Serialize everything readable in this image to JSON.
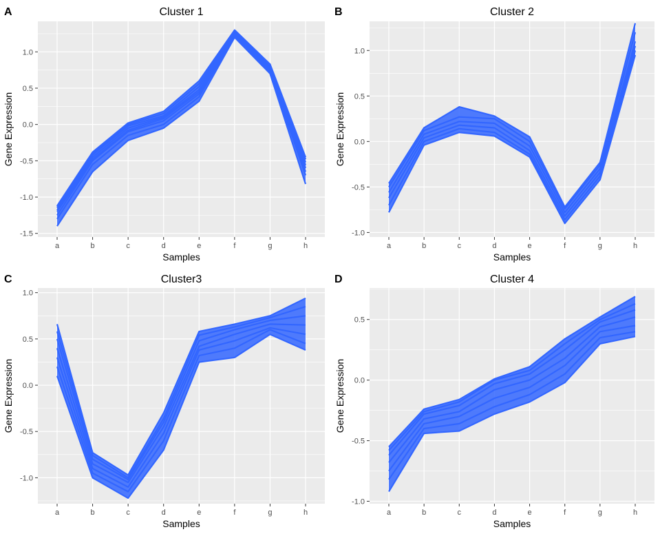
{
  "chart_data": [
    {
      "type": "line",
      "panel_label": "A",
      "title": "Cluster 1",
      "xlabel": "Samples",
      "ylabel": "Gene Expression",
      "categories": [
        "a",
        "b",
        "c",
        "d",
        "e",
        "f",
        "g",
        "h"
      ],
      "ylim": [
        -1.55,
        1.42
      ],
      "yticks": [
        1.0,
        0.5,
        0.0,
        -0.5,
        -1.0,
        -1.5
      ],
      "ytick_labels": [
        "1.0",
        "0.5",
        "0.0",
        "-0.5",
        "-1.0",
        "-1.5"
      ],
      "grid": true,
      "line_color": "#3366FF",
      "series": [
        {
          "values": [
            -1.4,
            -0.65,
            -0.22,
            -0.05,
            0.32,
            1.2,
            0.7,
            -0.82
          ]
        },
        {
          "values": [
            -1.3,
            -0.55,
            -0.15,
            0.0,
            0.38,
            1.22,
            0.72,
            -0.7
          ]
        },
        {
          "values": [
            -1.25,
            -0.5,
            -0.1,
            0.05,
            0.42,
            1.24,
            0.74,
            -0.65
          ]
        },
        {
          "values": [
            -1.2,
            -0.48,
            -0.08,
            0.08,
            0.45,
            1.25,
            0.75,
            -0.6
          ]
        },
        {
          "values": [
            -1.18,
            -0.45,
            -0.05,
            0.1,
            0.48,
            1.26,
            0.77,
            -0.56
          ]
        },
        {
          "values": [
            -1.15,
            -0.42,
            -0.02,
            0.12,
            0.52,
            1.27,
            0.78,
            -0.52
          ]
        },
        {
          "values": [
            -1.13,
            -0.4,
            0.0,
            0.15,
            0.56,
            1.28,
            0.8,
            -0.48
          ]
        },
        {
          "values": [
            -1.12,
            -0.38,
            0.02,
            0.18,
            0.6,
            1.3,
            0.83,
            -0.45
          ]
        }
      ]
    },
    {
      "type": "line",
      "panel_label": "B",
      "title": "Cluster 2",
      "xlabel": "Samples",
      "ylabel": "Gene Expression",
      "categories": [
        "a",
        "b",
        "c",
        "d",
        "e",
        "f",
        "g",
        "h"
      ],
      "ylim": [
        -1.05,
        1.32
      ],
      "yticks": [
        1.0,
        0.5,
        0.0,
        -0.5,
        -1.0
      ],
      "ytick_labels": [
        "1.0",
        "0.5",
        "0.0",
        "-0.5",
        "-1.0"
      ],
      "grid": true,
      "line_color": "#3366FF",
      "series": [
        {
          "values": [
            -0.78,
            -0.04,
            0.1,
            0.06,
            -0.17,
            -0.9,
            -0.42,
            0.95
          ]
        },
        {
          "values": [
            -0.7,
            0.0,
            0.14,
            0.1,
            -0.14,
            -0.86,
            -0.38,
            1.0
          ]
        },
        {
          "values": [
            -0.62,
            0.04,
            0.18,
            0.15,
            -0.1,
            -0.82,
            -0.34,
            1.05
          ]
        },
        {
          "values": [
            -0.56,
            0.08,
            0.22,
            0.2,
            -0.05,
            -0.78,
            -0.3,
            1.1
          ]
        },
        {
          "values": [
            -0.5,
            0.12,
            0.27,
            0.25,
            0.0,
            -0.74,
            -0.26,
            1.2
          ]
        },
        {
          "values": [
            -0.46,
            0.15,
            0.38,
            0.28,
            0.05,
            -0.72,
            -0.23,
            1.3
          ]
        }
      ]
    },
    {
      "type": "line",
      "panel_label": "C",
      "title": "Cluster3",
      "xlabel": "Samples",
      "ylabel": "Gene Expression",
      "categories": [
        "a",
        "b",
        "c",
        "d",
        "e",
        "f",
        "g",
        "h"
      ],
      "ylim": [
        -1.28,
        1.05
      ],
      "yticks": [
        1.0,
        0.5,
        0.0,
        -0.5,
        -1.0
      ],
      "ytick_labels": [
        "1.0",
        "0.5",
        "0.0",
        "-0.5",
        "-1.0"
      ],
      "grid": true,
      "line_color": "#3366FF",
      "series": [
        {
          "values": [
            0.1,
            -1.0,
            -1.22,
            -0.7,
            0.25,
            0.3,
            0.55,
            0.38
          ]
        },
        {
          "values": [
            0.2,
            -0.95,
            -1.15,
            -0.6,
            0.32,
            0.4,
            0.6,
            0.45
          ]
        },
        {
          "values": [
            0.3,
            -0.9,
            -1.1,
            -0.52,
            0.38,
            0.48,
            0.62,
            0.55
          ]
        },
        {
          "values": [
            0.4,
            -0.85,
            -1.05,
            -0.45,
            0.42,
            0.55,
            0.66,
            0.65
          ]
        },
        {
          "values": [
            0.5,
            -0.8,
            -1.02,
            -0.4,
            0.48,
            0.6,
            0.7,
            0.75
          ]
        },
        {
          "values": [
            0.58,
            -0.76,
            -1.0,
            -0.36,
            0.54,
            0.63,
            0.73,
            0.85
          ]
        },
        {
          "values": [
            0.66,
            -0.73,
            -0.97,
            -0.3,
            0.58,
            0.66,
            0.75,
            0.94
          ]
        }
      ]
    },
    {
      "type": "line",
      "panel_label": "D",
      "title": "Cluster 4",
      "xlabel": "Samples",
      "ylabel": "Gene Expression",
      "categories": [
        "a",
        "b",
        "c",
        "d",
        "e",
        "f",
        "g",
        "h"
      ],
      "ylim": [
        -1.02,
        0.76
      ],
      "yticks": [
        0.5,
        0.0,
        -0.5,
        -1.0
      ],
      "ytick_labels": [
        "0.5",
        "0.0",
        "-0.5",
        "-1.0"
      ],
      "grid": true,
      "line_color": "#3366FF",
      "series": [
        {
          "values": [
            -0.92,
            -0.44,
            -0.42,
            -0.28,
            -0.18,
            -0.02,
            0.3,
            0.36
          ]
        },
        {
          "values": [
            -0.82,
            -0.4,
            -0.36,
            -0.22,
            -0.12,
            0.05,
            0.35,
            0.4
          ]
        },
        {
          "values": [
            -0.75,
            -0.36,
            -0.3,
            -0.15,
            -0.06,
            0.12,
            0.4,
            0.45
          ]
        },
        {
          "values": [
            -0.68,
            -0.32,
            -0.26,
            -0.08,
            0.0,
            0.18,
            0.44,
            0.52
          ]
        },
        {
          "values": [
            -0.62,
            -0.28,
            -0.21,
            -0.03,
            0.05,
            0.25,
            0.48,
            0.58
          ]
        },
        {
          "values": [
            -0.58,
            -0.26,
            -0.18,
            0.0,
            0.08,
            0.3,
            0.5,
            0.63
          ]
        },
        {
          "values": [
            -0.55,
            -0.24,
            -0.16,
            0.01,
            0.11,
            0.34,
            0.52,
            0.69
          ]
        }
      ]
    }
  ]
}
